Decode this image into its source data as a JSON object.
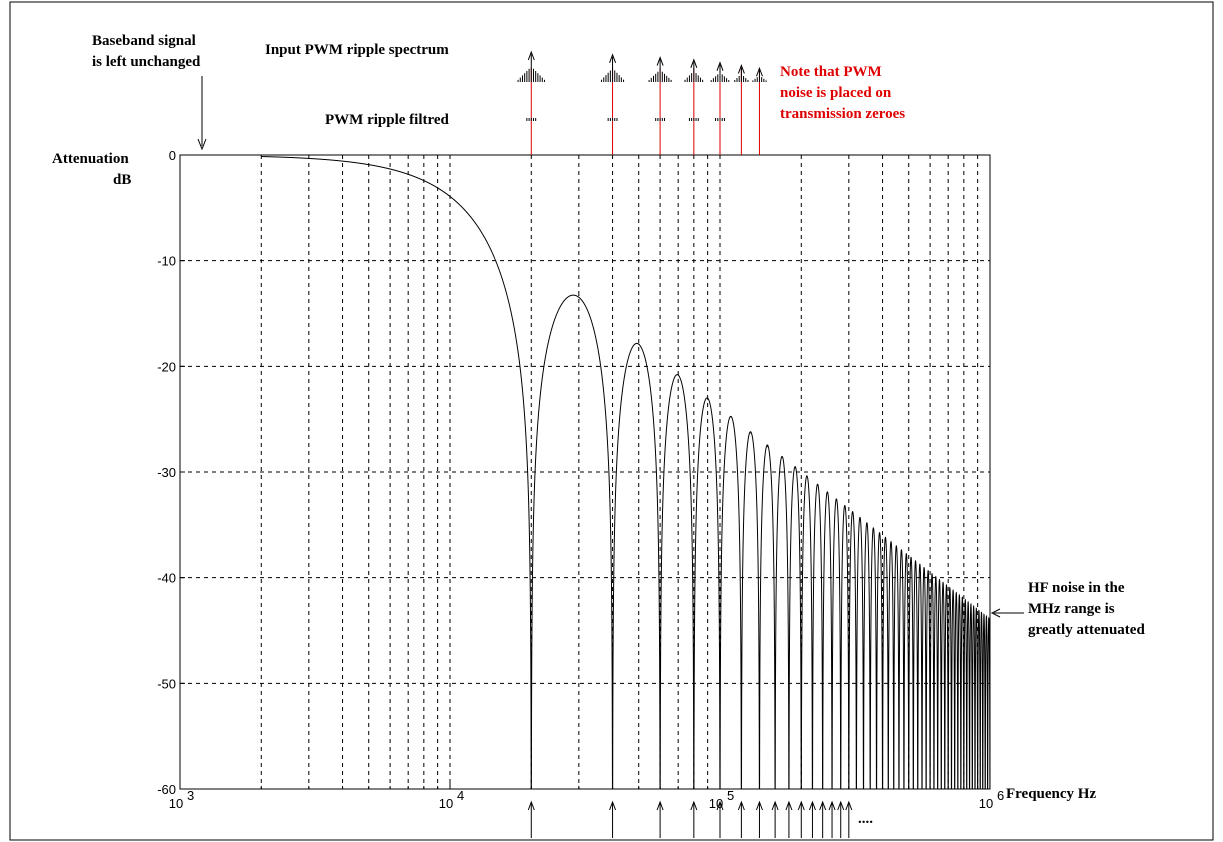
{
  "colors": {
    "axis": "#000000",
    "curve": "#000000",
    "marker": "#e00000",
    "note": "#e00000"
  },
  "chart_data": {
    "type": "line",
    "x_scale": "log",
    "xlim": [
      1000,
      1000000
    ],
    "ylim": [
      -60,
      0
    ],
    "grid": true,
    "ylabel_lines": [
      "Attenuation",
      "dB"
    ],
    "xlabel": "Frequency Hz",
    "x_ticks": [
      {
        "base": "10",
        "exp": "3",
        "value": 1000
      },
      {
        "base": "10",
        "exp": "4",
        "value": 10000
      },
      {
        "base": "10",
        "exp": "5",
        "value": 100000
      },
      {
        "base": "10",
        "exp": "6",
        "value": 1000000
      }
    ],
    "y_ticks": [
      {
        "label": "0",
        "value": 0
      },
      {
        "label": "-10",
        "value": -10
      },
      {
        "label": "-20",
        "value": -20
      },
      {
        "label": "-30",
        "value": -30
      },
      {
        "label": "-40",
        "value": -40
      },
      {
        "label": "-50",
        "value": -50
      },
      {
        "label": "-60",
        "value": -60
      }
    ],
    "sinc_zero_spacing_hz": 20000,
    "transmission_zeros_hz": [
      20000,
      40000,
      60000,
      80000,
      100000,
      120000,
      140000
    ],
    "lobe_peaks": [
      {
        "x": 30000,
        "y": -13.3
      },
      {
        "x": 50000,
        "y": -17.9
      },
      {
        "x": 70000,
        "y": -20.8
      },
      {
        "x": 90000,
        "y": -23.1
      },
      {
        "x": 110000,
        "y": -24.8
      },
      {
        "x": 130000,
        "y": -26.3
      },
      {
        "x": 150000,
        "y": -27.6
      },
      {
        "x": 170000,
        "y": -28.6
      },
      {
        "x": 190000,
        "y": -29.6
      },
      {
        "x": 390000,
        "y": -35.8
      },
      {
        "x": 590000,
        "y": -39.4
      },
      {
        "x": 790000,
        "y": -41.9
      },
      {
        "x": 990000,
        "y": -43.9
      }
    ],
    "bottom_markers_hz": [
      20000,
      40000,
      60000,
      80000,
      100000,
      120000,
      140000,
      160000,
      180000,
      200000,
      220000,
      240000,
      260000,
      280000,
      300000
    ],
    "input_ripple_spectrum": [
      {
        "x": 20000,
        "peak": 1.0
      },
      {
        "x": 40000,
        "peak": 0.9
      },
      {
        "x": 60000,
        "peak": 0.8
      },
      {
        "x": 80000,
        "peak": 0.72
      },
      {
        "x": 100000,
        "peak": 0.62
      },
      {
        "x": 120000,
        "peak": 0.52
      },
      {
        "x": 140000,
        "peak": 0.42
      }
    ],
    "bottom_ellipsis": "....",
    "annotations": {
      "baseband": [
        "Baseband signal",
        "is left unchanged"
      ],
      "input_spectrum": "Input PWM ripple spectrum",
      "filtered": "PWM ripple filtred",
      "note": [
        "Note that PWM",
        "noise is placed on",
        "transmission zeroes"
      ],
      "hf_noise": [
        "HF noise in the",
        "MHz range is",
        "greatly attenuated"
      ]
    }
  }
}
